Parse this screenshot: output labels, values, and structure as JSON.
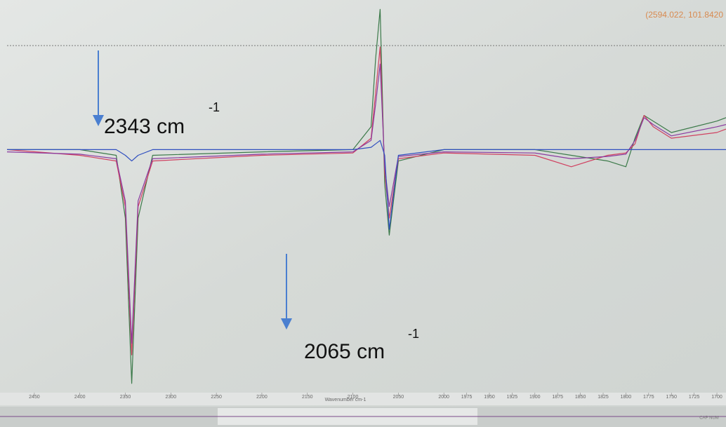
{
  "chart_data": {
    "type": "line",
    "coordinate_readout": "(2594.022, 101.8420",
    "x_label": "Wavenumber cm-1",
    "status": "CAP NUM",
    "annotations": [
      {
        "text": "2343 cm",
        "superscript": "-1"
      },
      {
        "text": "2065 cm",
        "superscript": "-1"
      }
    ],
    "x": [
      2480,
      2400,
      2360,
      2350,
      2343,
      2336,
      2320,
      2200,
      2100,
      2080,
      2075,
      2070,
      2065,
      2060,
      2050,
      2000,
      1900,
      1860,
      1820,
      1800,
      1790,
      1780,
      1770,
      1750,
      1700,
      1690
    ],
    "series": [
      {
        "color": "#3c7a4a",
        "values": [
          0,
          0,
          -5,
          -60,
          -205,
          -60,
          -5,
          -2,
          0,
          20,
          80,
          123,
          -30,
          -75,
          -10,
          0,
          0,
          -5,
          -10,
          -15,
          10,
          30,
          25,
          15,
          25,
          28
        ]
      },
      {
        "color": "#d04060",
        "values": [
          0,
          -5,
          -10,
          -50,
          -180,
          -50,
          -10,
          -5,
          -3,
          10,
          50,
          90,
          -20,
          -60,
          -8,
          -3,
          -5,
          -15,
          -5,
          -3,
          5,
          30,
          20,
          10,
          15,
          18
        ]
      },
      {
        "color": "#8a3aa0",
        "values": [
          -2,
          -4,
          -8,
          -45,
          -170,
          -45,
          -8,
          -4,
          -2,
          8,
          40,
          75,
          -15,
          -50,
          -6,
          -2,
          -3,
          -8,
          -6,
          -4,
          8,
          28,
          22,
          12,
          20,
          22
        ]
      },
      {
        "color": "#3050c0",
        "values": [
          0,
          0,
          0,
          -5,
          -10,
          -5,
          0,
          0,
          0,
          2,
          5,
          8,
          -5,
          -70,
          -5,
          0,
          0,
          0,
          0,
          0,
          0,
          0,
          0,
          0,
          0,
          0
        ]
      }
    ],
    "xlim": [
      2480,
      1690
    ],
    "ylim": [
      -210,
      125
    ],
    "xticks": [
      2450,
      2400,
      2350,
      2300,
      2250,
      2200,
      2150,
      2100,
      2050,
      2000,
      1975,
      1950,
      1925,
      1900,
      1875,
      1850,
      1825,
      1800,
      1775,
      1750,
      1725,
      1700
    ]
  }
}
